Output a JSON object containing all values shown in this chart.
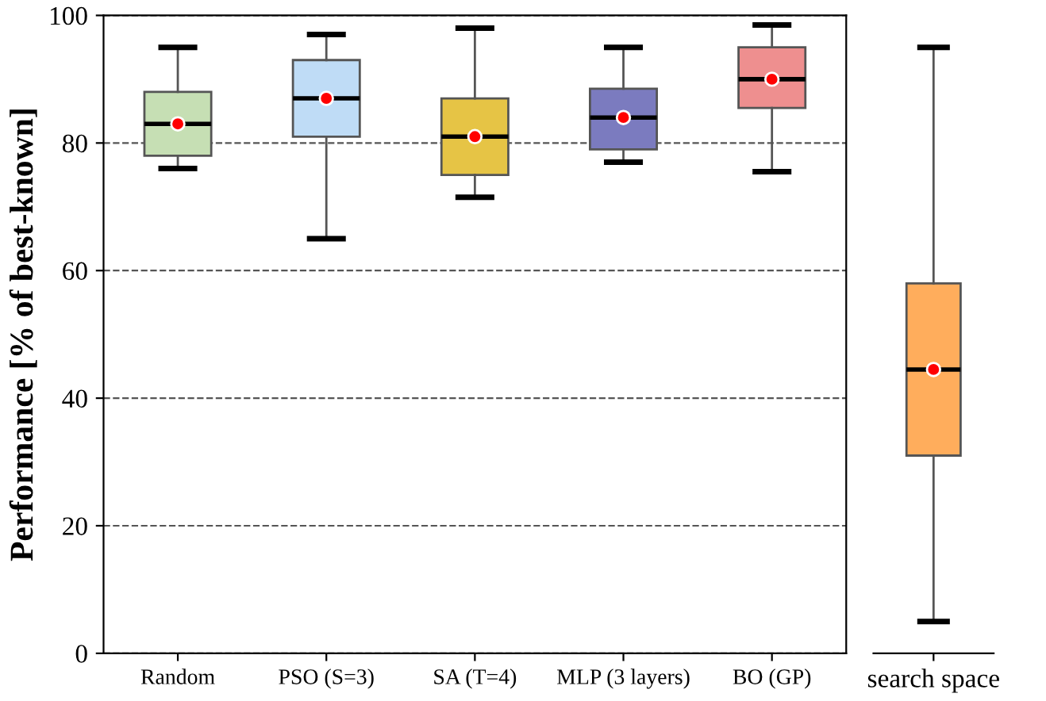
{
  "chart_data": [
    {
      "type": "box",
      "ylabel": "Performance [% of best-known]",
      "categories": [
        "Random",
        "PSO (S=3)",
        "SA (T=4)",
        "MLP (3 layers)",
        "BO (GP)"
      ],
      "colors": [
        "#c6dfb4",
        "#bfdcf6",
        "#e6c445",
        "#7b7bbf",
        "#ee8f8f"
      ],
      "boxes": [
        {
          "low": 76,
          "q1": 78,
          "median": 83,
          "q3": 88,
          "high": 95,
          "mean": 83
        },
        {
          "low": 65,
          "q1": 81,
          "median": 87,
          "q3": 93,
          "high": 97,
          "mean": 87
        },
        {
          "low": 71.5,
          "q1": 75,
          "median": 81,
          "q3": 87,
          "high": 98,
          "mean": 81
        },
        {
          "low": 77,
          "q1": 79,
          "median": 84,
          "q3": 88.5,
          "high": 95,
          "mean": 84
        },
        {
          "low": 75.5,
          "q1": 85.5,
          "median": 90,
          "q3": 95,
          "high": 98.5,
          "mean": 90
        }
      ],
      "ylim": [
        0,
        100
      ],
      "yticks": [
        0,
        20,
        40,
        60,
        80,
        100
      ],
      "grid": "y"
    },
    {
      "type": "box",
      "categories": [
        "search space"
      ],
      "colors": [
        "#ffad5c"
      ],
      "boxes": [
        {
          "low": 5,
          "q1": 31,
          "median": 44.5,
          "q3": 58,
          "high": 95,
          "mean": 44.5
        }
      ],
      "ylim": [
        0,
        100
      ],
      "yticks": [
        0,
        20,
        40,
        60,
        80,
        100
      ],
      "tick_labels": "x"
    }
  ]
}
